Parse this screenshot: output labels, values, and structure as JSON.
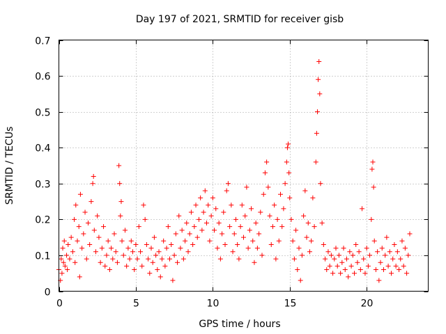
{
  "chart_data": {
    "type": "scatter",
    "title": "Day 197 of 2021, SRMTID for receiver gisb",
    "xlabel": "GPS time / hours",
    "ylabel": "SRMTID / TECUs",
    "xlim": [
      0,
      24
    ],
    "ylim": [
      0,
      0.7
    ],
    "x_ticks": [
      0,
      5,
      10,
      15,
      20
    ],
    "y_ticks": [
      0,
      0.1,
      0.2,
      0.3,
      0.4,
      0.5,
      0.6,
      0.7
    ],
    "x_tick_labels": [
      "0",
      "5",
      "10",
      "15",
      "20"
    ],
    "y_tick_labels": [
      "0",
      "0.1",
      "0.2",
      "0.3",
      "0.4",
      "0.5",
      "0.6",
      "0.7"
    ],
    "grid": true,
    "marker": "plus",
    "marker_color": "#ff0000",
    "series": [
      {
        "name": "SRMTID",
        "points": [
          [
            0.0,
            0.06
          ],
          [
            0.1,
            0.03
          ],
          [
            0.15,
            0.09
          ],
          [
            0.2,
            0.05
          ],
          [
            0.25,
            0.12
          ],
          [
            0.3,
            0.08
          ],
          [
            0.35,
            0.14
          ],
          [
            0.4,
            0.07
          ],
          [
            0.5,
            0.1
          ],
          [
            0.55,
            0.06
          ],
          [
            0.6,
            0.13
          ],
          [
            0.7,
            0.09
          ],
          [
            0.8,
            0.15
          ],
          [
            0.9,
            0.11
          ],
          [
            1.0,
            0.2
          ],
          [
            1.05,
            0.08
          ],
          [
            1.1,
            0.24
          ],
          [
            1.2,
            0.14
          ],
          [
            1.3,
            0.18
          ],
          [
            1.35,
            0.04
          ],
          [
            1.4,
            0.27
          ],
          [
            1.5,
            0.12
          ],
          [
            1.6,
            0.16
          ],
          [
            1.7,
            0.22
          ],
          [
            1.8,
            0.09
          ],
          [
            1.9,
            0.19
          ],
          [
            2.0,
            0.13
          ],
          [
            2.1,
            0.25
          ],
          [
            2.2,
            0.3
          ],
          [
            2.25,
            0.32
          ],
          [
            2.3,
            0.17
          ],
          [
            2.4,
            0.11
          ],
          [
            2.5,
            0.21
          ],
          [
            2.6,
            0.15
          ],
          [
            2.7,
            0.08
          ],
          [
            2.8,
            0.12
          ],
          [
            2.9,
            0.18
          ],
          [
            3.0,
            0.07
          ],
          [
            3.1,
            0.1
          ],
          [
            3.2,
            0.14
          ],
          [
            3.3,
            0.06
          ],
          [
            3.4,
            0.12
          ],
          [
            3.5,
            0.09
          ],
          [
            3.6,
            0.16
          ],
          [
            3.7,
            0.11
          ],
          [
            3.8,
            0.08
          ],
          [
            3.9,
            0.35
          ],
          [
            3.95,
            0.3
          ],
          [
            4.0,
            0.21
          ],
          [
            4.05,
            0.25
          ],
          [
            4.1,
            0.14
          ],
          [
            4.2,
            0.1
          ],
          [
            4.3,
            0.17
          ],
          [
            4.4,
            0.07
          ],
          [
            4.5,
            0.12
          ],
          [
            4.6,
            0.09
          ],
          [
            4.7,
            0.14
          ],
          [
            4.8,
            0.11
          ],
          [
            4.9,
            0.06
          ],
          [
            5.0,
            0.13
          ],
          [
            5.1,
            0.09
          ],
          [
            5.2,
            0.18
          ],
          [
            5.3,
            0.11
          ],
          [
            5.4,
            0.07
          ],
          [
            5.5,
            0.24
          ],
          [
            5.6,
            0.2
          ],
          [
            5.7,
            0.13
          ],
          [
            5.8,
            0.09
          ],
          [
            5.9,
            0.05
          ],
          [
            6.0,
            0.12
          ],
          [
            6.1,
            0.08
          ],
          [
            6.2,
            0.15
          ],
          [
            6.3,
            0.1
          ],
          [
            6.4,
            0.06
          ],
          [
            6.5,
            0.11
          ],
          [
            6.6,
            0.04
          ],
          [
            6.7,
            0.09
          ],
          [
            6.8,
            0.14
          ],
          [
            6.9,
            0.07
          ],
          [
            7.0,
            0.12
          ],
          [
            7.1,
            0.18
          ],
          [
            7.2,
            0.09
          ],
          [
            7.3,
            0.13
          ],
          [
            7.4,
            0.03
          ],
          [
            7.5,
            0.1
          ],
          [
            7.6,
            0.16
          ],
          [
            7.7,
            0.08
          ],
          [
            7.8,
            0.21
          ],
          [
            7.9,
            0.12
          ],
          [
            8.0,
            0.17
          ],
          [
            8.1,
            0.09
          ],
          [
            8.2,
            0.14
          ],
          [
            8.3,
            0.19
          ],
          [
            8.4,
            0.11
          ],
          [
            8.5,
            0.16
          ],
          [
            8.6,
            0.22
          ],
          [
            8.7,
            0.13
          ],
          [
            8.8,
            0.18
          ],
          [
            8.9,
            0.24
          ],
          [
            9.0,
            0.15
          ],
          [
            9.1,
            0.2
          ],
          [
            9.2,
            0.26
          ],
          [
            9.3,
            0.17
          ],
          [
            9.4,
            0.22
          ],
          [
            9.5,
            0.28
          ],
          [
            9.6,
            0.19
          ],
          [
            9.7,
            0.24
          ],
          [
            9.8,
            0.14
          ],
          [
            9.9,
            0.21
          ],
          [
            10.0,
            0.26
          ],
          [
            10.1,
            0.17
          ],
          [
            10.2,
            0.23
          ],
          [
            10.3,
            0.12
          ],
          [
            10.4,
            0.19
          ],
          [
            10.5,
            0.09
          ],
          [
            10.6,
            0.16
          ],
          [
            10.7,
            0.22
          ],
          [
            10.8,
            0.13
          ],
          [
            10.9,
            0.28
          ],
          [
            11.0,
            0.3
          ],
          [
            11.1,
            0.18
          ],
          [
            11.2,
            0.24
          ],
          [
            11.3,
            0.11
          ],
          [
            11.4,
            0.16
          ],
          [
            11.5,
            0.2
          ],
          [
            11.6,
            0.13
          ],
          [
            11.7,
            0.09
          ],
          [
            11.8,
            0.18
          ],
          [
            11.9,
            0.24
          ],
          [
            12.0,
            0.15
          ],
          [
            12.1,
            0.21
          ],
          [
            12.2,
            0.29
          ],
          [
            12.3,
            0.12
          ],
          [
            12.4,
            0.17
          ],
          [
            12.5,
            0.23
          ],
          [
            12.6,
            0.14
          ],
          [
            12.7,
            0.08
          ],
          [
            12.8,
            0.19
          ],
          [
            12.9,
            0.12
          ],
          [
            13.0,
            0.16
          ],
          [
            13.1,
            0.22
          ],
          [
            13.2,
            0.1
          ],
          [
            13.3,
            0.27
          ],
          [
            13.4,
            0.33
          ],
          [
            13.5,
            0.36
          ],
          [
            13.6,
            0.29
          ],
          [
            13.7,
            0.21
          ],
          [
            13.8,
            0.13
          ],
          [
            13.9,
            0.18
          ],
          [
            14.0,
            0.24
          ],
          [
            14.1,
            0.09
          ],
          [
            14.2,
            0.2
          ],
          [
            14.3,
            0.14
          ],
          [
            14.4,
            0.27
          ],
          [
            14.5,
            0.18
          ],
          [
            14.6,
            0.23
          ],
          [
            14.7,
            0.3
          ],
          [
            14.8,
            0.36
          ],
          [
            14.85,
            0.4
          ],
          [
            14.9,
            0.41
          ],
          [
            14.95,
            0.33
          ],
          [
            15.0,
            0.26
          ],
          [
            15.1,
            0.2
          ],
          [
            15.2,
            0.14
          ],
          [
            15.3,
            0.09
          ],
          [
            15.4,
            0.17
          ],
          [
            15.5,
            0.06
          ],
          [
            15.6,
            0.12
          ],
          [
            15.7,
            0.03
          ],
          [
            15.8,
            0.1
          ],
          [
            15.9,
            0.21
          ],
          [
            16.0,
            0.28
          ],
          [
            16.1,
            0.15
          ],
          [
            16.2,
            0.19
          ],
          [
            16.3,
            0.11
          ],
          [
            16.4,
            0.14
          ],
          [
            16.5,
            0.26
          ],
          [
            16.6,
            0.18
          ],
          [
            16.7,
            0.36
          ],
          [
            16.75,
            0.44
          ],
          [
            16.8,
            0.5
          ],
          [
            16.85,
            0.59
          ],
          [
            16.9,
            0.64
          ],
          [
            16.95,
            0.55
          ],
          [
            17.0,
            0.3
          ],
          [
            17.1,
            0.19
          ],
          [
            17.2,
            0.13
          ],
          [
            17.3,
            0.09
          ],
          [
            17.4,
            0.06
          ],
          [
            17.5,
            0.11
          ],
          [
            17.6,
            0.07
          ],
          [
            17.7,
            0.1
          ],
          [
            17.8,
            0.05
          ],
          [
            17.9,
            0.09
          ],
          [
            18.0,
            0.12
          ],
          [
            18.1,
            0.07
          ],
          [
            18.2,
            0.1
          ],
          [
            18.3,
            0.05
          ],
          [
            18.4,
            0.08
          ],
          [
            18.5,
            0.12
          ],
          [
            18.6,
            0.06
          ],
          [
            18.7,
            0.09
          ],
          [
            18.8,
            0.04
          ],
          [
            18.9,
            0.11
          ],
          [
            19.0,
            0.07
          ],
          [
            19.1,
            0.1
          ],
          [
            19.2,
            0.05
          ],
          [
            19.3,
            0.13
          ],
          [
            19.4,
            0.08
          ],
          [
            19.5,
            0.11
          ],
          [
            19.6,
            0.06
          ],
          [
            19.7,
            0.23
          ],
          [
            19.8,
            0.09
          ],
          [
            19.9,
            0.05
          ],
          [
            20.0,
            0.12
          ],
          [
            20.1,
            0.07
          ],
          [
            20.2,
            0.1
          ],
          [
            20.3,
            0.2
          ],
          [
            20.35,
            0.34
          ],
          [
            20.4,
            0.36
          ],
          [
            20.45,
            0.29
          ],
          [
            20.5,
            0.14
          ],
          [
            20.6,
            0.06
          ],
          [
            20.7,
            0.11
          ],
          [
            20.8,
            0.03
          ],
          [
            20.9,
            0.08
          ],
          [
            21.0,
            0.12
          ],
          [
            21.1,
            0.06
          ],
          [
            21.2,
            0.1
          ],
          [
            21.3,
            0.15
          ],
          [
            21.4,
            0.07
          ],
          [
            21.5,
            0.11
          ],
          [
            21.6,
            0.05
          ],
          [
            21.7,
            0.09
          ],
          [
            21.8,
            0.13
          ],
          [
            21.9,
            0.07
          ],
          [
            22.0,
            0.11
          ],
          [
            22.1,
            0.06
          ],
          [
            22.2,
            0.09
          ],
          [
            22.3,
            0.14
          ],
          [
            22.4,
            0.07
          ],
          [
            22.5,
            0.12
          ],
          [
            22.6,
            0.05
          ],
          [
            22.7,
            0.1
          ],
          [
            22.8,
            0.16
          ]
        ]
      }
    ]
  }
}
